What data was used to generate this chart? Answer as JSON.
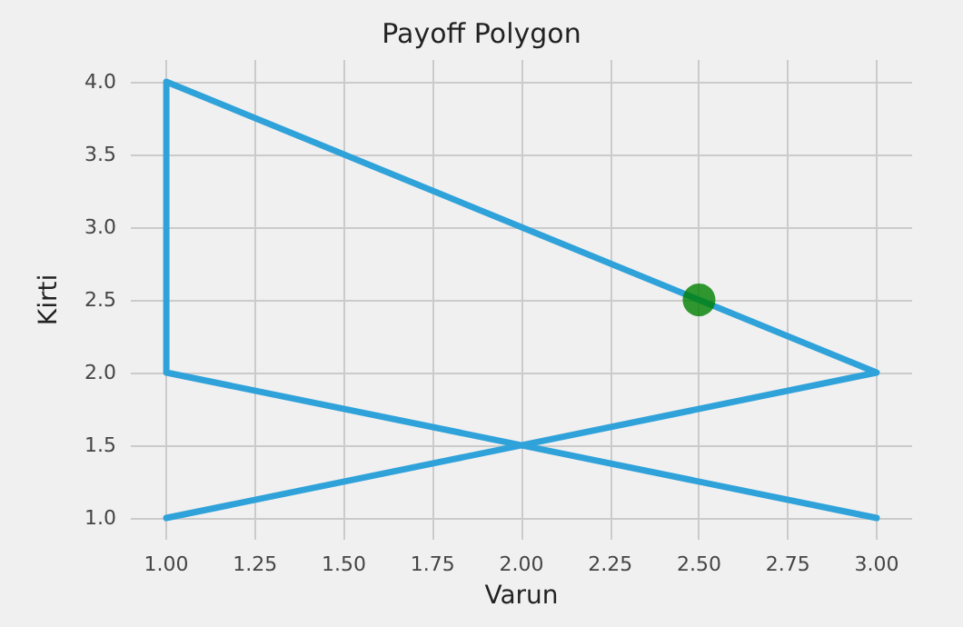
{
  "chart_data": {
    "type": "line",
    "title": "Payoff Polygon",
    "xlabel": "Varun",
    "ylabel": "Kirti",
    "xlim": [
      0.9,
      3.1
    ],
    "ylim": [
      0.85,
      4.15
    ],
    "xticks": [
      {
        "value": 1,
        "label": "1.00"
      },
      {
        "value": 1.25,
        "label": "1.25"
      },
      {
        "value": 1.5,
        "label": "1.50"
      },
      {
        "value": 1.75,
        "label": "1.75"
      },
      {
        "value": 2,
        "label": "2.00"
      },
      {
        "value": 2.25,
        "label": "2.25"
      },
      {
        "value": 2.5,
        "label": "2.50"
      },
      {
        "value": 2.75,
        "label": "2.75"
      },
      {
        "value": 3,
        "label": "3.00"
      }
    ],
    "yticks": [
      {
        "value": 1,
        "label": "1.0"
      },
      {
        "value": 1.5,
        "label": "1.5"
      },
      {
        "value": 2,
        "label": "2.0"
      },
      {
        "value": 2.5,
        "label": "2.5"
      },
      {
        "value": 3,
        "label": "3.0"
      },
      {
        "value": 3.5,
        "label": "3.5"
      },
      {
        "value": 4,
        "label": "4.0"
      }
    ],
    "grid": true,
    "series": [
      {
        "color": "#30a2da",
        "marker": "none",
        "line_style": "solid",
        "x": [
          3,
          1,
          1,
          3,
          1
        ],
        "values": [
          1,
          2,
          4,
          2,
          1
        ]
      },
      {
        "type": "scatter",
        "color": "#008000",
        "marker": "circle",
        "x": [
          2.5
        ],
        "values": [
          2.5
        ]
      }
    ]
  }
}
